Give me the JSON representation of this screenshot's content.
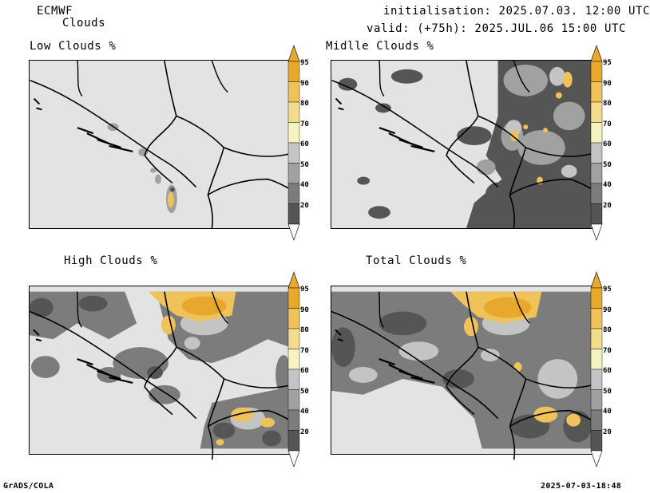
{
  "header": {
    "model": "ECMWF",
    "product": "Clouds",
    "init": "initialisation: 2025.07.03. 12:00 UTC",
    "valid": "valid: (+75h): 2025.JUL.06 15:00 UTC"
  },
  "panels": [
    {
      "title": "Low Clouds %"
    },
    {
      "title": "Midlle Clouds %"
    },
    {
      "title": "High Clouds %"
    },
    {
      "title": "Total Clouds %"
    }
  ],
  "colorbar": {
    "levels": [
      "95",
      "90",
      "80",
      "70",
      "60",
      "50",
      "40",
      "20"
    ],
    "colors": {
      "lt20": "#ffffff",
      "20_40": "#555555",
      "40_50": "#7c7c7c",
      "50_60": "#a1a1a1",
      "60_70": "#c4c4c4",
      "70_80": "#f6f3c2",
      "80_90": "#f3dc8c",
      "90_95": "#efc25a",
      "gt95": "#e7a82c"
    }
  },
  "footer": {
    "left": "GrADS/COLA",
    "right": "2025-07-03-18:48"
  }
}
